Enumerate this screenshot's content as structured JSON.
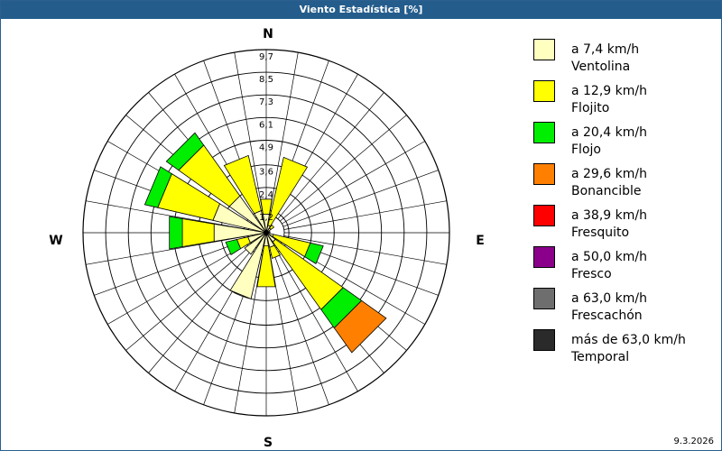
{
  "window": {
    "title": "Viento Estadística [%]"
  },
  "footer": {
    "date": "9.3.2026"
  },
  "chart_data": {
    "type": "wind-rose",
    "title": "Viento Estadística [%]",
    "directions": [
      "N",
      "NNE",
      "NE",
      "ENE",
      "E",
      "ESE",
      "SE",
      "SSE",
      "S",
      "SSW",
      "SW",
      "WSW",
      "W",
      "WNW",
      "NW",
      "NNW"
    ],
    "compass_labels": {
      "N": "N",
      "E": "E",
      "S": "S",
      "W": "W"
    },
    "radial_ticks": [
      "9,7",
      "8,5",
      "7,3",
      "6,1",
      "4,9",
      "3,6",
      "2,4",
      "1,2"
    ],
    "radial_tick_values": [
      9.7,
      8.5,
      7.3,
      6.1,
      4.9,
      3.6,
      2.4,
      1.2
    ],
    "rmax": 9.7,
    "bins": [
      {
        "speed": "a 7,4 km/h",
        "name": "Ventolina",
        "color": "#ffffc0"
      },
      {
        "speed": "a 12,9 km/h",
        "name": "Flojito",
        "color": "#ffff00"
      },
      {
        "speed": "a 20,4 km/h",
        "name": "Flojo",
        "color": "#00ee00"
      },
      {
        "speed": "a 29,6 km/h",
        "name": "Bonancible",
        "color": "#ff8000"
      },
      {
        "speed": "a 38,9 km/h",
        "name": "Fresquito",
        "color": "#ff0000"
      },
      {
        "speed": "a 50,0 km/h",
        "name": "Fresco",
        "color": "#8b008b"
      },
      {
        "speed": "a 63,0 km/h",
        "name": "Frescachón",
        "color": "#6e6e6e"
      },
      {
        "speed": "más de 63,0 km/h",
        "name": "Temporal",
        "color": "#2a2a2a"
      }
    ],
    "values": [
      [
        1.0,
        0.8,
        0,
        0,
        0,
        0,
        0,
        0
      ],
      [
        0.4,
        3.7,
        0,
        0,
        0,
        0,
        0,
        0
      ],
      [
        0.3,
        0.2,
        0,
        0,
        0,
        0,
        0,
        0
      ],
      [
        0.2,
        0.0,
        0,
        0,
        0,
        0,
        0,
        0
      ],
      [
        0.2,
        0.0,
        0,
        0,
        0,
        0,
        0,
        0
      ],
      [
        0.4,
        2.0,
        0.7,
        0,
        0,
        0,
        0,
        0
      ],
      [
        0.6,
        4.4,
        1.2,
        1.6,
        0,
        0,
        0,
        0
      ],
      [
        0.8,
        0.6,
        0,
        0,
        0,
        0,
        0,
        0
      ],
      [
        0.7,
        2.2,
        0,
        0,
        0,
        0,
        0,
        0
      ],
      [
        3.6,
        0.0,
        0,
        0,
        0,
        0,
        0,
        0
      ],
      [
        1.4,
        0.0,
        0,
        0,
        0,
        0,
        0,
        0
      ],
      [
        1.0,
        0.6,
        0.6,
        0,
        0,
        0,
        0,
        0
      ],
      [
        2.8,
        1.7,
        0.7,
        0,
        0,
        0,
        0,
        0
      ],
      [
        2.9,
        3.0,
        0.7,
        0,
        0,
        0,
        0,
        0
      ],
      [
        2.4,
        3.3,
        0.8,
        0,
        0,
        0,
        0,
        0
      ],
      [
        1.2,
        3.0,
        0,
        0,
        0,
        0,
        0,
        0
      ]
    ]
  }
}
